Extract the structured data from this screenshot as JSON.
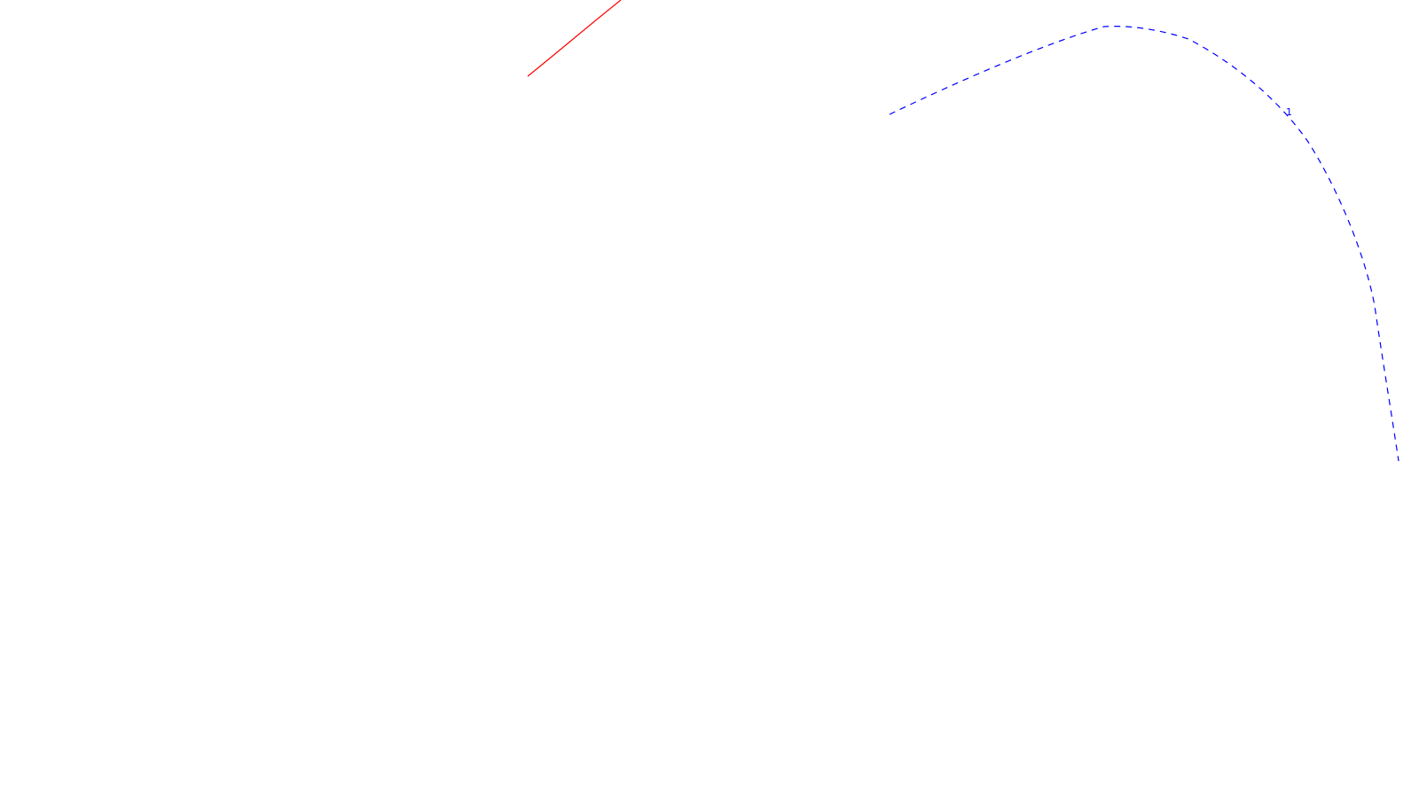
{
  "colors": {
    "background": "#ffffff",
    "red_curve": "#ff0000",
    "blue_curve": "#0000ff"
  },
  "curves": {
    "red": {
      "style": "solid",
      "label": ""
    },
    "blue": {
      "style": "dashed",
      "label": "1"
    }
  }
}
